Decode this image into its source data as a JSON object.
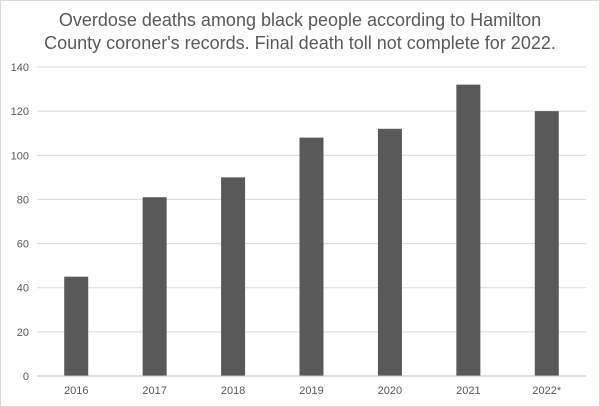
{
  "chart_data": {
    "type": "bar",
    "title_lines": [
      "Overdose deaths among black people according to Hamilton",
      "County coroner's records. Final death toll not complete for 2022."
    ],
    "categories": [
      "2016",
      "2017",
      "2018",
      "2019",
      "2020",
      "2021",
      "2022*"
    ],
    "values": [
      45,
      81,
      90,
      108,
      112,
      132,
      120
    ],
    "y_ticks": [
      "0",
      "20",
      "40",
      "60",
      "80",
      "100",
      "120",
      "140"
    ],
    "ylim": [
      0,
      140
    ],
    "grid": true,
    "legend": "none",
    "bar_color": "#595959",
    "grid_color": "#d9d9d9",
    "axis_color": "#bfbfbf"
  }
}
